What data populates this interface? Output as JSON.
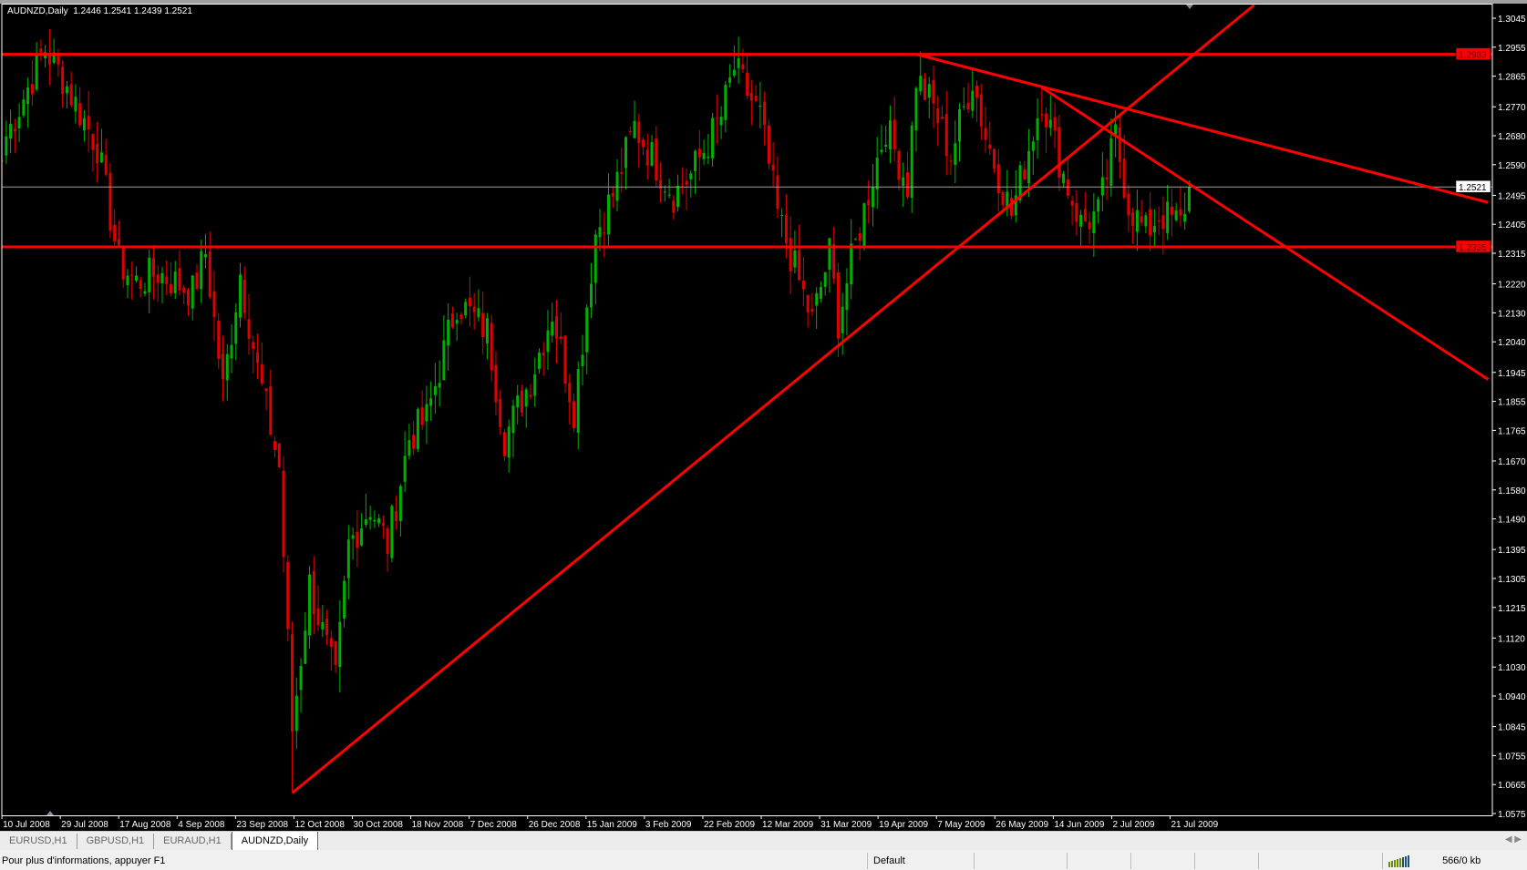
{
  "window": {
    "title": "AUDNZD,Daily",
    "ohlc": "1.2446 1.2541 1.2439 1.2521"
  },
  "tabs": [
    {
      "label": "EURUSD,H1",
      "active": false
    },
    {
      "label": "GBPUSD,H1",
      "active": false
    },
    {
      "label": "EURAUD,H1",
      "active": false
    },
    {
      "label": "AUDNZD,Daily",
      "active": true
    }
  ],
  "status": {
    "help": "Pour plus d'informations, appuyer F1",
    "profile": "Default",
    "traffic": "566/0 kb",
    "connection_icon": "connection-bars-icon"
  },
  "colors": {
    "background": "#000000",
    "up": "#00b000",
    "down": "#e00000",
    "trendline": "#ff0000",
    "axis": "#ffffff",
    "price_line": "#a0a0a0"
  },
  "chart_data": {
    "type": "candlestick",
    "symbol": "AUDNZD",
    "timeframe": "Daily",
    "ylim": [
      1.0575,
      1.3045
    ],
    "y_ticks": [
      "1.3045",
      "1.2955",
      "1.2865",
      "1.2770",
      "1.2680",
      "1.2590",
      "1.2495",
      "1.2405",
      "1.2315",
      "1.2220",
      "1.2130",
      "1.2040",
      "1.1945",
      "1.1855",
      "1.1765",
      "1.1670",
      "1.1580",
      "1.1490",
      "1.1395",
      "1.1305",
      "1.1215",
      "1.1120",
      "1.1030",
      "1.0940",
      "1.0845",
      "1.0755",
      "1.0665",
      "1.0575"
    ],
    "x_ticks": [
      "10 Jul 2008",
      "29 Jul 2008",
      "17 Aug 2008",
      "4 Sep 2008",
      "23 Sep 2008",
      "12 Oct 2008",
      "30 Oct 2008",
      "18 Nov 2008",
      "7 Dec 2008",
      "26 Dec 2008",
      "15 Jan 2009",
      "3 Feb 2009",
      "22 Feb 2009",
      "12 Mar 2009",
      "31 Mar 2009",
      "19 Apr 2009",
      "7 May 2009",
      "26 May 2009",
      "14 Jun 2009",
      "2 Jul 2009",
      "21 Jul 2009"
    ],
    "bars_per_tick": 13.48,
    "close_path": [
      [
        1,
        1.2679
      ],
      [
        10,
        1.295
      ],
      [
        14,
        1.286
      ],
      [
        22,
        1.2648
      ],
      [
        27,
        1.2286
      ],
      [
        31,
        1.2225
      ],
      [
        36,
        1.2255
      ],
      [
        44,
        1.2195
      ],
      [
        47,
        1.2316
      ],
      [
        51,
        1.1893
      ],
      [
        55,
        1.2255
      ],
      [
        59,
        1.1953
      ],
      [
        64,
        1.1651
      ],
      [
        67,
        1.0835
      ],
      [
        71,
        1.1288
      ],
      [
        77,
        1.0986
      ],
      [
        80,
        1.1409
      ],
      [
        85,
        1.153
      ],
      [
        89,
        1.1409
      ],
      [
        94,
        1.1742
      ],
      [
        98,
        1.1802
      ],
      [
        105,
        1.2165
      ],
      [
        112,
        1.2074
      ],
      [
        116,
        1.1742
      ],
      [
        122,
        1.1923
      ],
      [
        127,
        1.2135
      ],
      [
        132,
        1.1832
      ],
      [
        137,
        1.2376
      ],
      [
        141,
        1.2497
      ],
      [
        146,
        1.2709
      ],
      [
        155,
        1.2497
      ],
      [
        159,
        1.2558
      ],
      [
        166,
        1.2739
      ],
      [
        169,
        1.289
      ],
      [
        175,
        1.2739
      ],
      [
        179,
        1.2437
      ],
      [
        184,
        1.2225
      ],
      [
        187,
        1.2104
      ],
      [
        191,
        1.2316
      ],
      [
        193,
        1.2104
      ],
      [
        196,
        1.2286
      ],
      [
        201,
        1.2558
      ],
      [
        204,
        1.2709
      ],
      [
        209,
        1.2527
      ],
      [
        211,
        1.286
      ],
      [
        215,
        1.2769
      ],
      [
        219,
        1.2618
      ],
      [
        224,
        1.286
      ],
      [
        227,
        1.2679
      ],
      [
        233,
        1.2437
      ],
      [
        240,
        1.2799
      ],
      [
        245,
        1.2558
      ],
      [
        249,
        1.2407
      ],
      [
        253,
        1.2437
      ],
      [
        257,
        1.2679
      ],
      [
        260,
        1.2467
      ],
      [
        264,
        1.2377
      ],
      [
        267,
        1.2437
      ],
      [
        272,
        1.2407
      ],
      [
        274,
        1.2521
      ]
    ],
    "last_bar": {
      "open": 1.2446,
      "high": 1.2541,
      "low": 1.2439,
      "close": 1.2521
    },
    "extremes": {
      "high": 1.2962,
      "low": 1.0639
    },
    "horizontal_lines": [
      {
        "price": 1.2933,
        "label": "1.2933"
      },
      {
        "price": 1.2335,
        "label": "1.2335"
      }
    ],
    "current_price": {
      "price": 1.2521,
      "label": "1.2521"
    },
    "trend_lines": [
      {
        "from": [
          67,
          1.0639
        ],
        "to": [
          289,
          1.3086
        ]
      },
      {
        "from": [
          211,
          1.2933
        ],
        "to": [
          343,
          1.2473
        ]
      },
      {
        "from": [
          240,
          1.283
        ],
        "to": [
          343,
          1.1923
        ]
      }
    ]
  }
}
